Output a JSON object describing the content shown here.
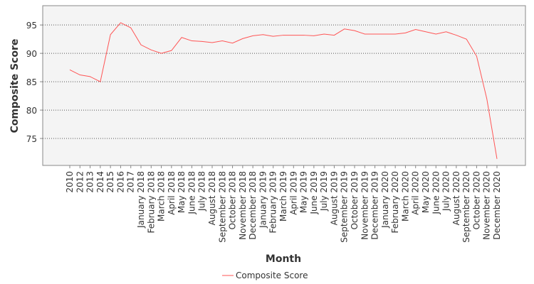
{
  "chart_data": {
    "type": "line",
    "xlabel": "Month",
    "ylabel": "Composite Score",
    "categories": [
      "2010",
      "2012",
      "2013",
      "2014",
      "2015",
      "2016",
      "2017",
      "January 2018",
      "February 2018",
      "March 2018",
      "April 2018",
      "May 2018",
      "June 2018",
      "July 2018",
      "August 2018",
      "September 2018",
      "October 2018",
      "November 2018",
      "December 2018",
      "January 2019",
      "February 2019",
      "March 2019",
      "April 2019",
      "May 2019",
      "June 2019",
      "July 2019",
      "August 2019",
      "September 2019",
      "October 2019",
      "November 2019",
      "December 2019",
      "January 2020",
      "February 2020",
      "March 2020",
      "April 2020",
      "May 2020",
      "June 2020",
      "July 2020",
      "August 2020",
      "September 2020",
      "October 2020",
      "November 2020",
      "December 2020"
    ],
    "series": [
      {
        "name": "Composite Score",
        "color": "#ff5555",
        "values": [
          87.1,
          86.2,
          85.9,
          85.0,
          93.3,
          95.4,
          94.5,
          91.5,
          90.6,
          90.0,
          90.5,
          92.8,
          92.2,
          92.1,
          91.9,
          92.2,
          91.8,
          92.6,
          93.1,
          93.3,
          93.0,
          93.2,
          93.2,
          93.2,
          93.1,
          93.4,
          93.2,
          94.3,
          94.0,
          93.4,
          93.4,
          93.4,
          93.4,
          93.6,
          94.2,
          93.8,
          93.4,
          93.8,
          93.2,
          92.5,
          89.5,
          82.0,
          71.4
        ]
      }
    ],
    "ylim": [
      70.25,
      98.4
    ],
    "yticks": [
      75,
      80,
      85,
      90,
      95
    ],
    "grid": true
  }
}
